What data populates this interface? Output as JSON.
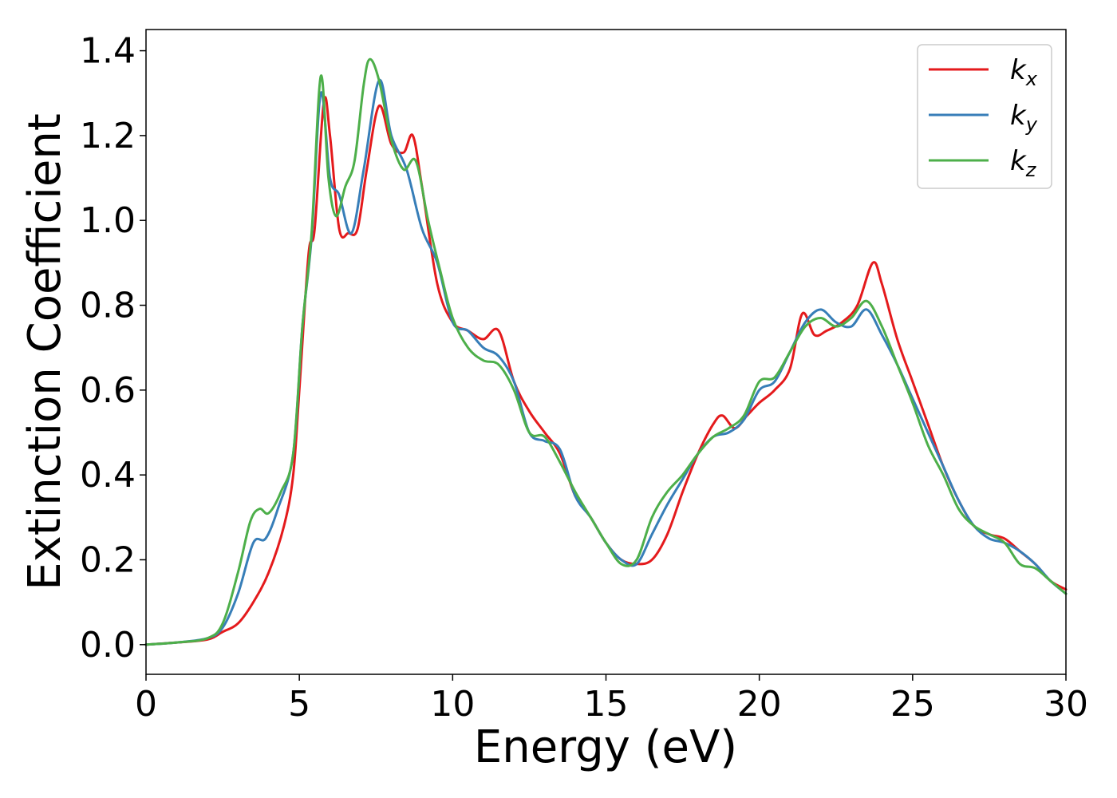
{
  "chart_data": {
    "type": "line",
    "title": "",
    "xlabel": "Energy (eV)",
    "ylabel": "Extinction Coefficient",
    "xlim": [
      0,
      30
    ],
    "ylim": [
      -0.07,
      1.45
    ],
    "xticks": [
      0,
      5,
      10,
      15,
      20,
      25,
      30
    ],
    "xtick_labels": [
      "0",
      "5",
      "10",
      "15",
      "20",
      "25",
      "30"
    ],
    "yticks": [
      0.0,
      0.2,
      0.4,
      0.6,
      0.8,
      1.0,
      1.2,
      1.4
    ],
    "ytick_labels": [
      "0.0",
      "0.2",
      "0.4",
      "0.6",
      "0.8",
      "1.0",
      "1.2",
      "1.4"
    ],
    "grid": false,
    "legend_position": "top-right",
    "series": [
      {
        "name": "k_x",
        "label_main": "k",
        "label_sub": "x",
        "color": "#e41a1c",
        "x": [
          0,
          1,
          2,
          2.5,
          3,
          3.5,
          4,
          4.5,
          4.8,
          5.0,
          5.3,
          5.5,
          5.8,
          6.0,
          6.3,
          6.6,
          6.9,
          7.2,
          7.6,
          8.0,
          8.4,
          8.7,
          9.0,
          9.5,
          10,
          10.5,
          11,
          11.5,
          12,
          12.5,
          13,
          13.5,
          14,
          14.5,
          15,
          15.5,
          16,
          16.5,
          17,
          17.5,
          18,
          18.5,
          18.8,
          19.2,
          19.6,
          20,
          20.5,
          21,
          21.4,
          21.8,
          22.2,
          22.7,
          23.2,
          23.7,
          24.0,
          24.5,
          25,
          25.5,
          26,
          26.5,
          27,
          27.5,
          28,
          28.5,
          29,
          29.5,
          30
        ],
        "y": [
          0.0,
          0.005,
          0.012,
          0.03,
          0.05,
          0.1,
          0.17,
          0.28,
          0.4,
          0.6,
          0.92,
          0.98,
          1.28,
          1.2,
          0.98,
          0.97,
          0.98,
          1.12,
          1.27,
          1.18,
          1.16,
          1.2,
          1.08,
          0.85,
          0.76,
          0.74,
          0.72,
          0.74,
          0.62,
          0.55,
          0.5,
          0.45,
          0.35,
          0.3,
          0.24,
          0.2,
          0.19,
          0.2,
          0.26,
          0.36,
          0.45,
          0.52,
          0.54,
          0.51,
          0.54,
          0.57,
          0.6,
          0.65,
          0.78,
          0.73,
          0.74,
          0.76,
          0.8,
          0.9,
          0.85,
          0.72,
          0.62,
          0.52,
          0.42,
          0.34,
          0.28,
          0.26,
          0.25,
          0.22,
          0.19,
          0.15,
          0.13
        ]
      },
      {
        "name": "k_y",
        "label_main": "k",
        "label_sub": "y",
        "color": "#377eb8",
        "x": [
          0,
          1,
          2,
          2.5,
          3,
          3.5,
          3.9,
          4.3,
          4.8,
          5.1,
          5.4,
          5.7,
          6.0,
          6.3,
          6.7,
          7.1,
          7.6,
          8.0,
          8.5,
          9.0,
          9.5,
          10,
          10.5,
          11,
          11.5,
          12,
          12.5,
          13,
          13.5,
          14,
          14.5,
          15,
          15.5,
          16,
          16.5,
          17,
          17.5,
          18,
          18.5,
          19,
          19.5,
          20,
          20.5,
          21,
          21.5,
          22,
          22.5,
          23,
          23.5,
          24.0,
          24.5,
          25,
          25.5,
          26,
          26.5,
          27,
          27.5,
          28,
          28.5,
          29,
          29.5,
          30
        ],
        "y": [
          0.0,
          0.005,
          0.015,
          0.04,
          0.12,
          0.24,
          0.25,
          0.32,
          0.45,
          0.75,
          0.96,
          1.3,
          1.1,
          1.06,
          0.97,
          1.12,
          1.33,
          1.2,
          1.12,
          0.98,
          0.9,
          0.76,
          0.74,
          0.7,
          0.68,
          0.62,
          0.5,
          0.48,
          0.46,
          0.35,
          0.3,
          0.24,
          0.2,
          0.19,
          0.26,
          0.33,
          0.39,
          0.45,
          0.49,
          0.5,
          0.53,
          0.6,
          0.62,
          0.69,
          0.76,
          0.79,
          0.76,
          0.75,
          0.79,
          0.73,
          0.66,
          0.58,
          0.5,
          0.42,
          0.34,
          0.28,
          0.25,
          0.24,
          0.22,
          0.19,
          0.15,
          0.12
        ]
      },
      {
        "name": "k_z",
        "label_main": "k",
        "label_sub": "z",
        "color": "#4daf4a",
        "x": [
          0,
          1,
          2,
          2.5,
          3,
          3.4,
          3.7,
          4.0,
          4.4,
          4.8,
          5.1,
          5.4,
          5.7,
          5.95,
          6.2,
          6.5,
          6.8,
          7.1,
          7.3,
          7.6,
          8.0,
          8.4,
          8.8,
          9.2,
          9.6,
          10,
          10.5,
          11,
          11.5,
          12,
          12.5,
          13,
          13.5,
          14,
          14.5,
          15,
          15.5,
          16,
          16.5,
          17,
          17.5,
          18,
          18.5,
          19,
          19.5,
          20,
          20.5,
          21,
          21.5,
          22,
          22.5,
          23,
          23.5,
          24.0,
          24.5,
          25,
          25.5,
          26,
          26.5,
          27,
          27.5,
          28,
          28.5,
          29,
          29.5,
          30
        ],
        "y": [
          0.0,
          0.005,
          0.015,
          0.05,
          0.17,
          0.29,
          0.32,
          0.31,
          0.36,
          0.45,
          0.75,
          0.97,
          1.34,
          1.1,
          1.01,
          1.08,
          1.14,
          1.32,
          1.38,
          1.33,
          1.19,
          1.12,
          1.14,
          1.0,
          0.88,
          0.77,
          0.7,
          0.67,
          0.66,
          0.6,
          0.5,
          0.49,
          0.43,
          0.36,
          0.3,
          0.24,
          0.19,
          0.2,
          0.3,
          0.36,
          0.4,
          0.45,
          0.49,
          0.51,
          0.54,
          0.62,
          0.63,
          0.69,
          0.75,
          0.77,
          0.75,
          0.77,
          0.81,
          0.75,
          0.66,
          0.57,
          0.47,
          0.4,
          0.32,
          0.28,
          0.26,
          0.24,
          0.19,
          0.18,
          0.15,
          0.12
        ]
      }
    ]
  }
}
